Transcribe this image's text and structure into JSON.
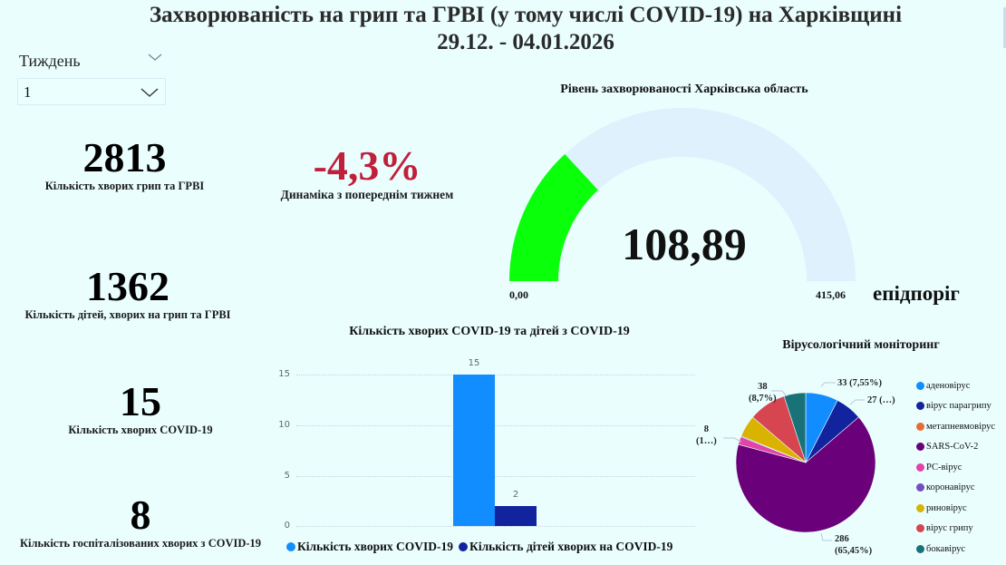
{
  "header": {
    "title_line1": "Захворюваність на грип та ГРВІ (у тому числі COVID-19) на Харківщині",
    "title_line2": "29.12. - 04.01.2026"
  },
  "filter": {
    "label": "Тиждень",
    "selected": "1"
  },
  "kpis": {
    "flu_cases": {
      "value": "2813",
      "label": "Кількість хворих грип та ГРВІ"
    },
    "dynamics": {
      "value": "-4,3%",
      "label": "Динаміка з попереднім тижнем",
      "color": "#c0203a"
    },
    "children_cases": {
      "value": "1362",
      "label": "Кількість дітей, хворих на грип та ГРВІ"
    },
    "covid_cases": {
      "value": "15",
      "label": "Кількість хворих COVID-19"
    },
    "covid_hospitalized": {
      "value": "8",
      "label": "Кількість госпіталізованих хворих з COVID-19"
    }
  },
  "gauge": {
    "title": "Рівень захворюваності Харківська область",
    "value": "108,89",
    "min": "0,00",
    "max": "415,06",
    "threshold_label": "епідпоріг",
    "fill_color": "#0aff0a",
    "track_color": "#dff1fd"
  },
  "bar_chart": {
    "title": "Кількість хворих COVID-19 та дітей з COVID-19",
    "ticks": [
      "0",
      "5",
      "10",
      "15"
    ],
    "bars": [
      {
        "label": "15",
        "value": 15,
        "color": "#118dff"
      },
      {
        "label": "2",
        "value": 2,
        "color": "#12239e"
      }
    ],
    "legend": [
      {
        "label": "Кількість хворих COVID-19",
        "color": "#118dff"
      },
      {
        "label": "Кількість дітей хворих на COVID-19",
        "color": "#12239e"
      }
    ]
  },
  "pie_chart": {
    "title": "Вірусологічний моніторинг",
    "labels": {
      "adeno": "33 (7,55%)",
      "paraflu": "27 (…)",
      "sars": [
        "286",
        "(65,45%)"
      ],
      "rs": [
        "8",
        "(1…)"
      ],
      "flu": [
        "38",
        "(8,7%)"
      ]
    },
    "legend": [
      {
        "label": "аденовірус",
        "color": "#118dff"
      },
      {
        "label": "вірус парагрипу",
        "color": "#12239e"
      },
      {
        "label": "метапневмовірус",
        "color": "#e66c37"
      },
      {
        "label": "SARS-CoV-2",
        "color": "#6b007b"
      },
      {
        "label": " РС-вірус",
        "color": "#e044a7"
      },
      {
        "label": "коронавірус",
        "color": "#744ec2"
      },
      {
        "label": "риновірус",
        "color": "#d9b300"
      },
      {
        "label": "вірус грипу",
        "color": "#d64550"
      },
      {
        "label": "бокавірус",
        "color": "#197278"
      }
    ]
  },
  "chart_data": [
    {
      "type": "gauge",
      "title": "Рівень захворюваності Харківська область",
      "value": 108.89,
      "min": 0.0,
      "max": 415.06,
      "max_label": "епідпоріг"
    },
    {
      "type": "bar",
      "title": "Кількість хворих COVID-19 та дітей з COVID-19",
      "categories": [
        ""
      ],
      "series": [
        {
          "name": "Кількість хворих COVID-19",
          "values": [
            15
          ]
        },
        {
          "name": "Кількість дітей хворих на COVID-19",
          "values": [
            2
          ]
        }
      ],
      "ylim": [
        0,
        15
      ],
      "yticks": [
        0,
        5,
        10,
        15
      ],
      "grid": true,
      "legend_position": "bottom"
    },
    {
      "type": "pie",
      "title": "Вірусологічний моніторинг",
      "categories": [
        "аденовірус",
        "вірус парагрипу",
        "метапневмовірус",
        "SARS-CoV-2",
        "РС-вірус",
        "коронавірус",
        "риновірус",
        "вірус грипу",
        "бокавірус"
      ],
      "values": [
        33,
        27,
        0,
        286,
        8,
        1,
        22,
        38,
        22
      ],
      "percent_labels": [
        "7,55%",
        "…",
        "",
        "65,45%",
        "1…",
        "",
        "",
        "8,7%",
        ""
      ],
      "legend_position": "right"
    },
    {
      "type": "table",
      "title": "KPI cards",
      "rows": [
        [
          "Кількість хворих грип та ГРВІ",
          2813
        ],
        [
          "Динаміка з попереднім тижнем",
          "-4,3%"
        ],
        [
          "Кількість дітей, хворих на грип та ГРВІ",
          1362
        ],
        [
          "Кількість хворих COVID-19",
          15
        ],
        [
          "Кількість госпіталізованих хворих з COVID-19",
          8
        ]
      ]
    }
  ]
}
